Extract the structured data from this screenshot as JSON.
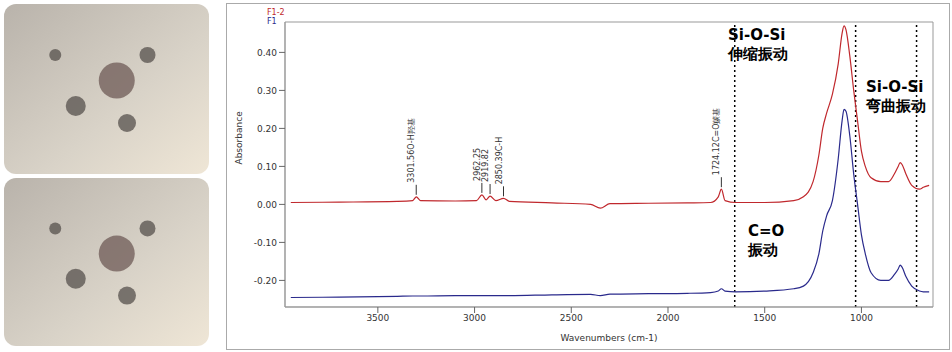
{
  "chart_data": {
    "type": "line",
    "x_label": "Wavenumbers (cm-1)",
    "y_label": "Absorbance",
    "xlim": [
      3980,
      630
    ],
    "xticks": [
      3500,
      3000,
      2500,
      2000,
      1500,
      1000
    ],
    "ylim": [
      -0.27,
      0.48
    ],
    "yticks": [
      {
        "value": -0.2,
        "label": "-0.20"
      },
      {
        "value": -0.1,
        "label": "-0.10"
      },
      {
        "value": 0,
        "label": "0.00"
      },
      {
        "value": 0.1,
        "label": "0.10"
      },
      {
        "value": 0.2,
        "label": "0.20"
      },
      {
        "value": 0.3,
        "label": "0.30"
      },
      {
        "value": 0.4,
        "label": "0.40"
      }
    ],
    "grid": false,
    "x": [
      3950,
      3700,
      3400,
      3320,
      3301,
      3280,
      3100,
      2990,
      2962,
      2940,
      2920,
      2890,
      2850,
      2820,
      2600,
      2400,
      2350,
      2300,
      2100,
      1900,
      1780,
      1740,
      1724,
      1705,
      1650,
      1500,
      1350,
      1300,
      1250,
      1220,
      1200,
      1180,
      1150,
      1120,
      1100,
      1090,
      1080,
      1060,
      1040,
      1020,
      1000,
      980,
      950,
      900,
      860,
      830,
      810,
      800,
      790,
      770,
      740,
      700,
      680,
      650
    ],
    "series": [
      {
        "name": "F1-2",
        "color": "#c0282d",
        "values": [
          0.005,
          0.006,
          0.008,
          0.01,
          0.02,
          0.01,
          0.009,
          0.01,
          0.025,
          0.012,
          0.022,
          0.01,
          0.016,
          0.008,
          0.004,
          0.0,
          -0.01,
          0.002,
          0.003,
          0.004,
          0.005,
          0.02,
          0.04,
          0.01,
          0.005,
          0.005,
          0.01,
          0.02,
          0.06,
          0.13,
          0.2,
          0.24,
          0.29,
          0.37,
          0.45,
          0.47,
          0.46,
          0.39,
          0.3,
          0.22,
          0.14,
          0.1,
          0.07,
          0.06,
          0.06,
          0.08,
          0.1,
          0.11,
          0.105,
          0.08,
          0.05,
          0.04,
          0.045,
          0.05
        ]
      },
      {
        "name": "F1",
        "color": "#2a2a8c",
        "values": [
          -0.245,
          -0.244,
          -0.242,
          -0.241,
          -0.241,
          -0.241,
          -0.24,
          -0.24,
          -0.24,
          -0.24,
          -0.24,
          -0.24,
          -0.24,
          -0.24,
          -0.238,
          -0.237,
          -0.24,
          -0.236,
          -0.235,
          -0.234,
          -0.232,
          -0.228,
          -0.222,
          -0.228,
          -0.23,
          -0.228,
          -0.222,
          -0.215,
          -0.18,
          -0.13,
          -0.07,
          -0.03,
          0.01,
          0.12,
          0.22,
          0.25,
          0.245,
          0.18,
          0.08,
          0.0,
          -0.08,
          -0.13,
          -0.18,
          -0.2,
          -0.2,
          -0.185,
          -0.17,
          -0.16,
          -0.165,
          -0.19,
          -0.215,
          -0.228,
          -0.23,
          -0.23
        ]
      }
    ],
    "annotations": [
      {
        "x": 3301.56,
        "y": 0.02,
        "text": "3301.56O-H羟基"
      },
      {
        "x": 2962.25,
        "y": 0.025,
        "text": "2962.25"
      },
      {
        "x": 2919.82,
        "y": 0.022,
        "text": "2919.82"
      },
      {
        "x": 2850.39,
        "y": 0.016,
        "text": "2850.39C-H"
      },
      {
        "x": 1724.12,
        "y": 0.04,
        "text": "1724.12C=O羰基"
      }
    ],
    "vlines": [
      1655,
      1030,
      715
    ],
    "region_labels": [
      [
        "Si-O-Si",
        "伸缩振动"
      ],
      [
        "Si-O-Si",
        "弯曲振动"
      ],
      [
        "C=O",
        "振动"
      ]
    ]
  }
}
